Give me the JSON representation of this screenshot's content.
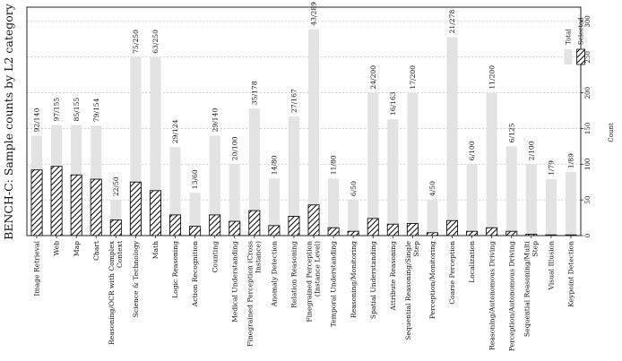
{
  "chart_data": {
    "type": "bar",
    "title": "BENCH-C: Sample counts by L2 category",
    "ylabel": "Count",
    "xlabel": "",
    "ylim": [
      0,
      320
    ],
    "yticks": [
      0,
      50,
      100,
      150,
      200,
      250,
      300
    ],
    "grid": true,
    "legend_placement": "top-right",
    "colors": {
      "total": "#e3e3e3",
      "selected_hatch": "#111111",
      "grid": "#bbbbbb"
    },
    "categories": [
      "Image Retrieval",
      "Web",
      "Map",
      "Chart",
      "Reasoning/OCR with Complex Context",
      "Science & Technology",
      "Math",
      "Logic Reasoning",
      "Action Recognition",
      "Counting",
      "Medical Understanding",
      "Finegrained Perception (Cross Instance)",
      "Anomaly Detection",
      "Relation Reasoning",
      "Finegrained Perception (Instance Level)",
      "Temporal Understanding",
      "Reasoning/Monitoring",
      "Spatial Understanding",
      "Attribute Reasoning",
      "Sequential Reasoning/Single Step",
      "Perception/Monitoring",
      "Coarse Perception",
      "Localization",
      "Reasoning/Autonomous Driving",
      "Perception/Autonomous Driving",
      "Sequential Reasoning/Multi Step",
      "Visual Illusion",
      "Keypoint Detection"
    ],
    "series": [
      {
        "name": "Total",
        "values": [
          140,
          155,
          155,
          154,
          50,
          250,
          250,
          124,
          60,
          140,
          100,
          178,
          80,
          167,
          289,
          80,
          50,
          200,
          163,
          200,
          50,
          278,
          100,
          200,
          125,
          100,
          79,
          89
        ]
      },
      {
        "name": "Selected",
        "values": [
          92,
          97,
          85,
          79,
          22,
          75,
          63,
          29,
          13,
          29,
          20,
          35,
          14,
          27,
          43,
          11,
          6,
          24,
          16,
          17,
          4,
          21,
          6,
          11,
          6,
          2,
          1,
          1
        ]
      }
    ],
    "data_labels": [
      "92/140",
      "97/155",
      "85/155",
      "79/154",
      "22/50",
      "75/250",
      "63/250",
      "29/124",
      "13/60",
      "29/140",
      "20/100",
      "35/178",
      "14/80",
      "27/167",
      "43/289",
      "11/80",
      "6/50",
      "24/200",
      "16/163",
      "17/200",
      "4/50",
      "21/278",
      "6/100",
      "11/200",
      "6/125",
      "2/100",
      "1/79",
      "1/89"
    ]
  }
}
